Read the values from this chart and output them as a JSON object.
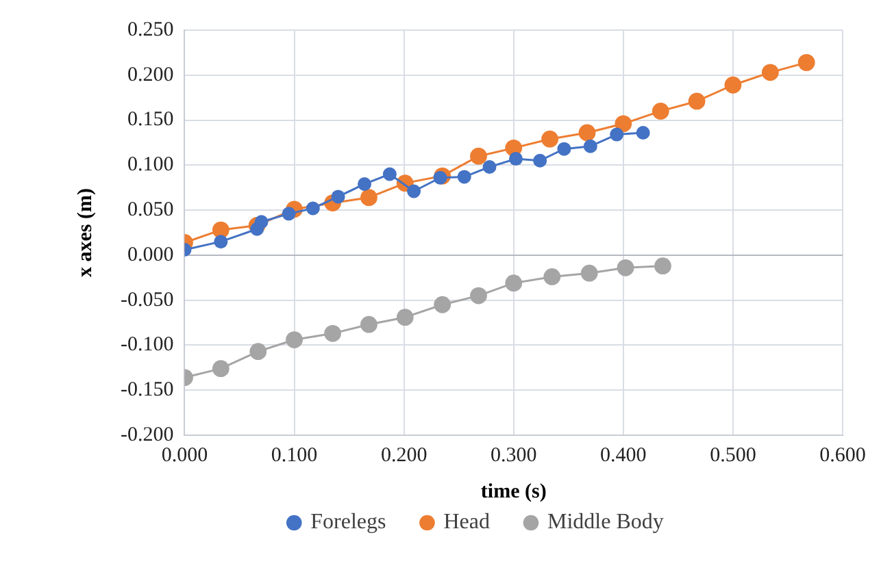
{
  "chart_data": {
    "type": "line",
    "xlabel": "time (s)",
    "ylabel": "x axes (m)",
    "xlim": [
      0,
      0.6
    ],
    "xticks": [
      {
        "value": 0,
        "label": "0.000"
      },
      {
        "value": 0.1,
        "label": "0.100"
      },
      {
        "value": 0.2,
        "label": "0.200"
      },
      {
        "value": 0.3,
        "label": "0.300"
      },
      {
        "value": 0.4,
        "label": "0.400"
      },
      {
        "value": 0.5,
        "label": "0.500"
      },
      {
        "value": 0.6,
        "label": "0.600"
      }
    ],
    "ylim": [
      -0.2,
      0.25
    ],
    "yticks": [
      {
        "value": -0.2,
        "label": "-0.200"
      },
      {
        "value": -0.15,
        "label": "-0.150"
      },
      {
        "value": -0.1,
        "label": "-0.100"
      },
      {
        "value": -0.05,
        "label": "-0.050"
      },
      {
        "value": 0,
        "label": "0.000"
      },
      {
        "value": 0.05,
        "label": "0.050"
      },
      {
        "value": 0.1,
        "label": "0.100"
      },
      {
        "value": 0.15,
        "label": "0.150"
      },
      {
        "value": 0.2,
        "label": "0.200"
      },
      {
        "value": 0.25,
        "label": "0.250"
      }
    ],
    "grid": true,
    "legend": "bottom",
    "marker": "circle",
    "line_style": "solid",
    "series": [
      {
        "name": "Forelegs",
        "color": "#4472c4",
        "x": [
          0,
          0.033,
          0.066,
          0.07,
          0.095,
          0.117,
          0.14,
          0.164,
          0.187,
          0.209,
          0.233,
          0.255,
          0.278,
          0.302,
          0.324,
          0.346,
          0.37,
          0.394,
          0.418
        ],
        "values": [
          0.006,
          0.015,
          0.029,
          0.037,
          0.046,
          0.052,
          0.065,
          0.079,
          0.09,
          0.071,
          0.086,
          0.087,
          0.098,
          0.107,
          0.105,
          0.118,
          0.121,
          0.134,
          0.136
        ]
      },
      {
        "name": "Head",
        "color": "#ed7d31",
        "x": [
          0,
          0.033,
          0.066,
          0.1,
          0.135,
          0.168,
          0.201,
          0.235,
          0.268,
          0.3,
          0.333,
          0.367,
          0.4,
          0.434,
          0.467,
          0.5,
          0.534,
          0.567
        ],
        "values": [
          0.014,
          0.028,
          0.033,
          0.051,
          0.058,
          0.064,
          0.08,
          0.088,
          0.11,
          0.119,
          0.129,
          0.136,
          0.146,
          0.16,
          0.171,
          0.189,
          0.203,
          0.214
        ]
      },
      {
        "name": "Middle Body",
        "color": "#a5a5a5",
        "x": [
          0,
          0.033,
          0.067,
          0.1,
          0.135,
          0.168,
          0.201,
          0.235,
          0.268,
          0.3,
          0.335,
          0.369,
          0.402,
          0.436
        ],
        "values": [
          -0.136,
          -0.126,
          -0.107,
          -0.094,
          -0.087,
          -0.077,
          -0.069,
          -0.055,
          -0.045,
          -0.031,
          -0.024,
          -0.02,
          -0.014,
          -0.012
        ]
      }
    ]
  }
}
